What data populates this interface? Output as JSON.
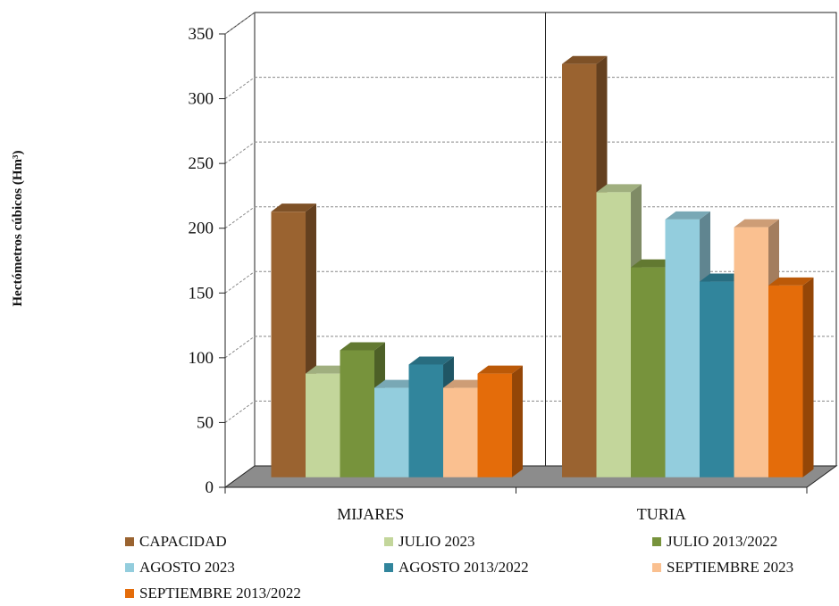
{
  "chart_data": {
    "type": "bar",
    "title": "",
    "xlabel": "",
    "ylabel": "Hectómetros cúbicos (Hm³)",
    "ylim": [
      0,
      350
    ],
    "yticks": [
      0,
      50,
      100,
      150,
      200,
      250,
      300,
      350
    ],
    "grid": true,
    "three_d": true,
    "legend_position": "bottom",
    "categories": [
      "MIJARES",
      "TURIA"
    ],
    "series": [
      {
        "name": "CAPACIDAD",
        "values": [
          205,
          319
        ],
        "color": "#9A6330"
      },
      {
        "name": "JULIO  2023",
        "values": [
          80,
          220
        ],
        "color": "#C3D69B"
      },
      {
        "name": "JULIO 2013/2022",
        "values": [
          98,
          162
        ],
        "color": "#77933C"
      },
      {
        "name": "AGOSTO  2023",
        "values": [
          69,
          199
        ],
        "color": "#93CDDD"
      },
      {
        "name": "AGOSTO  2013/2022",
        "values": [
          87,
          151
        ],
        "color": "#31859C"
      },
      {
        "name": "SEPTIEMBRE  2023",
        "values": [
          69,
          193
        ],
        "color": "#FAC090"
      },
      {
        "name": "SEPTIEMBRE 2013/2022",
        "values": [
          80,
          148
        ],
        "color": "#E46C0A"
      }
    ]
  }
}
